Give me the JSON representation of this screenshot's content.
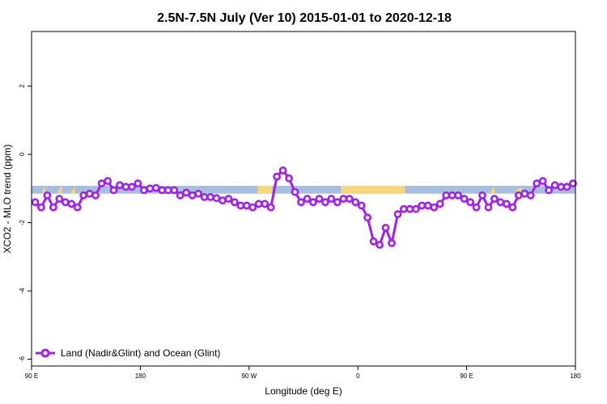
{
  "chart_data": {
    "type": "line",
    "title": "2.5N-7.5N July (Ver 10)   2015-01-01 to 2020-12-18",
    "xlabel": "Longitude (deg E)",
    "ylabel": "XCO2 - MLO trend (ppm)",
    "x_ticks": [
      {
        "value": 90,
        "label": "90 E"
      },
      {
        "value": 180,
        "label": "180"
      },
      {
        "value": 270,
        "label": "90 W"
      },
      {
        "value": 360,
        "label": "0"
      },
      {
        "value": 450,
        "label": "90 E"
      },
      {
        "value": 540,
        "label": "180"
      }
    ],
    "y_ticks": [
      {
        "value": 2,
        "label": "2"
      },
      {
        "value": 0,
        "label": "0"
      },
      {
        "value": -2,
        "label": "-2"
      },
      {
        "value": -4,
        "label": "-4"
      },
      {
        "value": -6,
        "label": "-6"
      }
    ],
    "xlim": [
      90,
      540
    ],
    "ylim": [
      -6.2,
      3.6
    ],
    "grid": false,
    "legend_position": "bottom-left",
    "land_ocean_band": {
      "y_range": [
        -1.15,
        -0.92
      ],
      "ocean_color": "#a7bfdc",
      "land_color": "#f7d680",
      "land_segments": [
        {
          "x": [
            99,
            101
          ],
          "top": [
            -1.05,
            -0.92
          ]
        },
        {
          "x": [
            112,
            115
          ],
          "top": [
            -1.08,
            -0.92
          ]
        },
        {
          "x": [
            123,
            126
          ],
          "top": [
            -1.06,
            -0.95
          ]
        },
        {
          "x": [
            277,
            289
          ],
          "top": [
            -0.92,
            -0.92
          ]
        },
        {
          "x": [
            346,
            399
          ],
          "top": [
            -0.92,
            -0.92
          ]
        },
        {
          "x": [
            470,
            473
          ],
          "top": [
            -1.08,
            -0.92
          ]
        },
        {
          "x": [
            491,
            495
          ],
          "top": [
            -1.06,
            -0.95
          ]
        },
        {
          "x": [
            503,
            506
          ],
          "top": [
            -1.09,
            -0.95
          ]
        }
      ]
    },
    "series": [
      {
        "name": "Land (Nadir&Glint) and Ocean (Glint)",
        "color": "#a020f0",
        "points": [
          [
            93,
            -1.4
          ],
          [
            98,
            -1.55
          ],
          [
            103,
            -1.2
          ],
          [
            108,
            -1.55
          ],
          [
            113,
            -1.3
          ],
          [
            118,
            -1.4
          ],
          [
            123,
            -1.45
          ],
          [
            128,
            -1.55
          ],
          [
            133,
            -1.2
          ],
          [
            138,
            -1.15
          ],
          [
            143,
            -1.2
          ],
          [
            148,
            -0.85
          ],
          [
            153,
            -0.78
          ],
          [
            158,
            -1.05
          ],
          [
            163,
            -0.9
          ],
          [
            168,
            -0.95
          ],
          [
            173,
            -0.95
          ],
          [
            178,
            -0.85
          ],
          [
            183,
            -1.05
          ],
          [
            188,
            -1.0
          ],
          [
            193,
            -0.98
          ],
          [
            198,
            -1.05
          ],
          [
            203,
            -1.05
          ],
          [
            208,
            -1.05
          ],
          [
            213,
            -1.2
          ],
          [
            218,
            -1.12
          ],
          [
            223,
            -1.2
          ],
          [
            228,
            -1.15
          ],
          [
            233,
            -1.25
          ],
          [
            238,
            -1.25
          ],
          [
            243,
            -1.28
          ],
          [
            248,
            -1.35
          ],
          [
            253,
            -1.3
          ],
          [
            258,
            -1.4
          ],
          [
            263,
            -1.5
          ],
          [
            268,
            -1.5
          ],
          [
            273,
            -1.55
          ],
          [
            278,
            -1.45
          ],
          [
            283,
            -1.45
          ],
          [
            288,
            -1.55
          ],
          [
            293,
            -0.65
          ],
          [
            298,
            -0.47
          ],
          [
            303,
            -0.7
          ],
          [
            308,
            -1.1
          ],
          [
            313,
            -1.4
          ],
          [
            318,
            -1.3
          ],
          [
            323,
            -1.4
          ],
          [
            328,
            -1.3
          ],
          [
            333,
            -1.4
          ],
          [
            338,
            -1.3
          ],
          [
            343,
            -1.4
          ],
          [
            348,
            -1.3
          ],
          [
            353,
            -1.3
          ],
          [
            358,
            -1.4
          ],
          [
            363,
            -1.5
          ],
          [
            368,
            -1.85
          ],
          [
            373,
            -2.55
          ],
          [
            378,
            -2.65
          ],
          [
            383,
            -2.15
          ],
          [
            388,
            -2.6
          ],
          [
            393,
            -1.75
          ],
          [
            398,
            -1.6
          ],
          [
            403,
            -1.6
          ],
          [
            408,
            -1.6
          ],
          [
            413,
            -1.5
          ],
          [
            418,
            -1.5
          ],
          [
            423,
            -1.55
          ],
          [
            428,
            -1.45
          ],
          [
            433,
            -1.2
          ],
          [
            438,
            -1.2
          ],
          [
            443,
            -1.2
          ],
          [
            448,
            -1.3
          ],
          [
            453,
            -1.4
          ],
          [
            458,
            -1.55
          ],
          [
            463,
            -1.2
          ],
          [
            468,
            -1.55
          ],
          [
            473,
            -1.3
          ],
          [
            478,
            -1.4
          ],
          [
            483,
            -1.45
          ],
          [
            488,
            -1.55
          ],
          [
            493,
            -1.2
          ],
          [
            498,
            -1.15
          ],
          [
            503,
            -1.2
          ],
          [
            508,
            -0.85
          ],
          [
            513,
            -0.78
          ],
          [
            518,
            -1.05
          ],
          [
            523,
            -0.9
          ],
          [
            528,
            -0.95
          ],
          [
            533,
            -0.95
          ],
          [
            538,
            -0.85
          ]
        ]
      }
    ]
  }
}
